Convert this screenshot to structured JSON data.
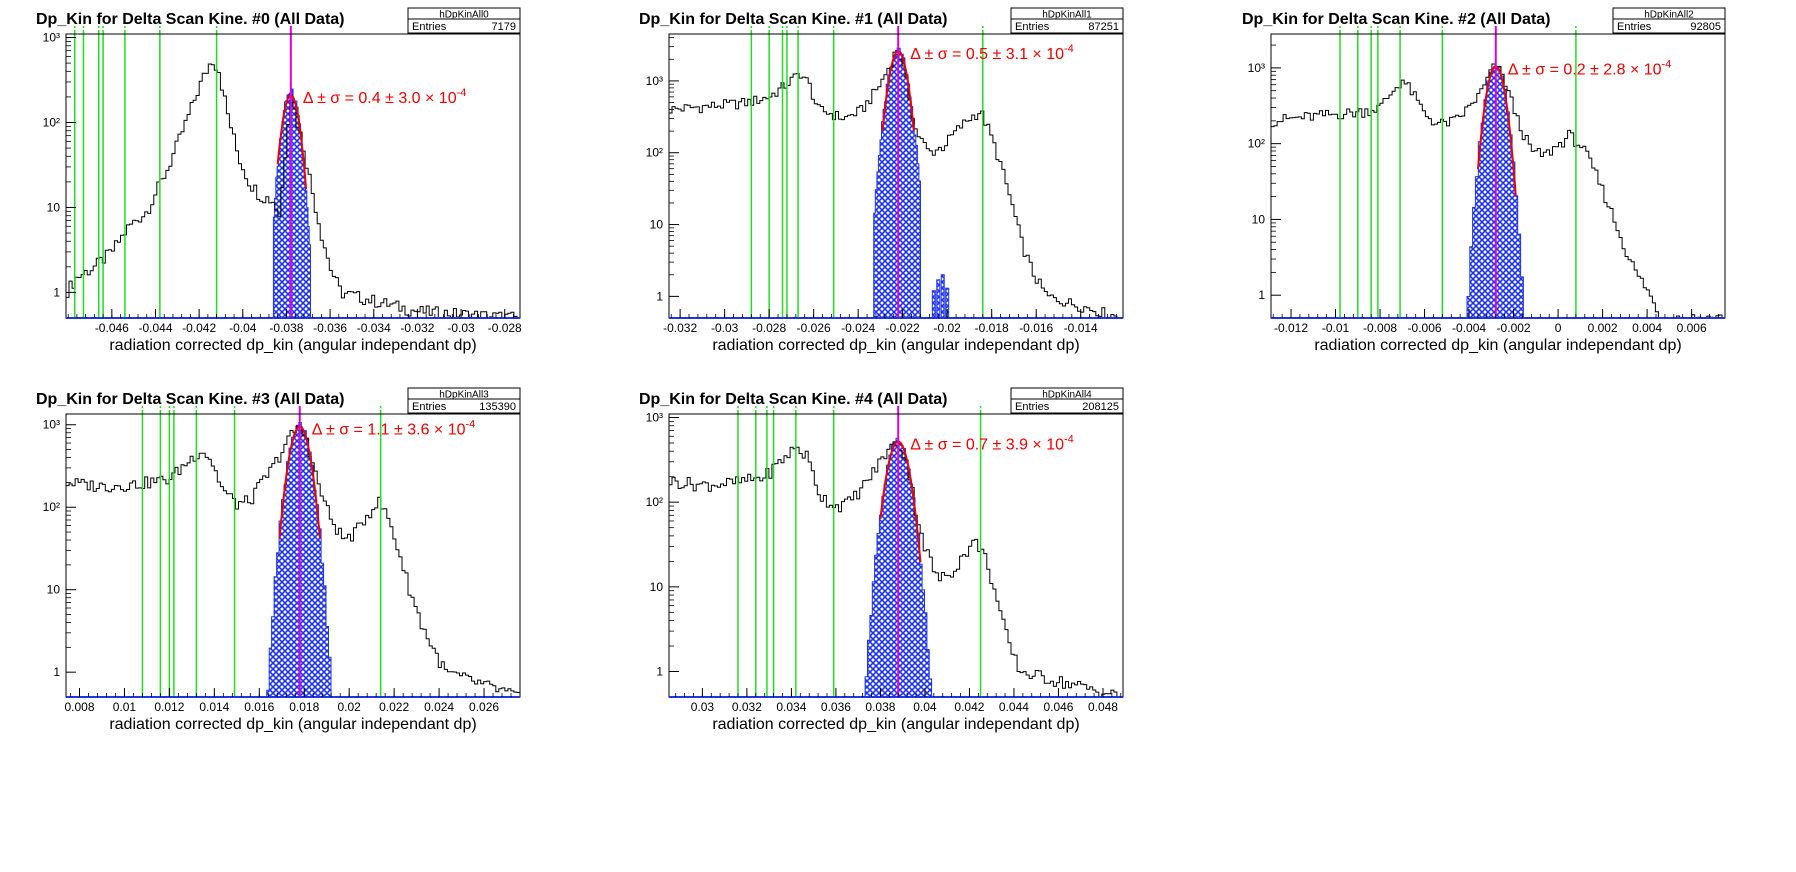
{
  "chart_data": [
    {
      "type": "histogram",
      "title": "Dp_Kin for Delta Scan Kine. #0 (All Data)",
      "stats": {
        "name": "hDpKinAll0",
        "entries_label": "Entries",
        "entries": "7179"
      },
      "xlabel": "radiation corrected dp_kin (angular independant dp)",
      "xlim": [
        -0.0481,
        -0.0273
      ],
      "ylim": [
        0.5,
        1100
      ],
      "yscale": "log",
      "xticks": [
        "-0.046",
        "-0.044",
        "-0.042",
        "-0.04",
        "-0.038",
        "-0.036",
        "-0.034",
        "-0.032",
        "-0.03",
        "-0.028"
      ],
      "yticks": [
        "1",
        "10",
        "10²",
        "10³"
      ],
      "annotation": {
        "prefix": "Δ ± σ = ",
        "value": "0.4 ± 3.0 × 10",
        "exp": "-4"
      },
      "green_lines": [
        -0.0477,
        -0.0473,
        -0.0466,
        -0.0464,
        -0.0454,
        -0.0438,
        -0.0412
      ],
      "peak_line": -0.0378,
      "anchors": [
        [
          -0.0481,
          1
        ],
        [
          -0.0476,
          1.5
        ],
        [
          -0.0468,
          2
        ],
        [
          -0.046,
          3
        ],
        [
          -0.0452,
          6
        ],
        [
          -0.0444,
          9
        ],
        [
          -0.0434,
          30
        ],
        [
          -0.0426,
          100
        ],
        [
          -0.0419,
          300
        ],
        [
          -0.0414,
          560
        ],
        [
          -0.0411,
          420
        ],
        [
          -0.0407,
          130
        ],
        [
          -0.0402,
          40
        ],
        [
          -0.0397,
          20
        ],
        [
          -0.0392,
          14
        ],
        [
          -0.0386,
          12
        ],
        [
          -0.0383,
          8
        ],
        [
          -0.0381,
          30
        ],
        [
          -0.0379,
          120
        ],
        [
          -0.0378,
          210
        ],
        [
          -0.0376,
          130
        ],
        [
          -0.0372,
          50
        ],
        [
          -0.0368,
          15
        ],
        [
          -0.0364,
          5
        ],
        [
          -0.036,
          2
        ],
        [
          -0.0355,
          1
        ],
        [
          -0.034,
          0.8
        ],
        [
          -0.032,
          0.6
        ],
        [
          -0.0273,
          0.5
        ]
      ],
      "shaded": {
        "mean": -0.0378,
        "sigma": 0.0003,
        "amp": 230,
        "lo": -0.0386,
        "hi": -0.0369,
        "secondary": []
      },
      "fit": {
        "mean": -0.0378,
        "sigma": 0.00031,
        "amp": 210,
        "lo": -0.0384,
        "hi": -0.0371
      }
    },
    {
      "type": "histogram",
      "title": "Dp_Kin for Delta Scan Kine. #1 (All Data)",
      "stats": {
        "name": "hDpKinAll1",
        "entries_label": "Entries",
        "entries": "87251"
      },
      "xlabel": "radiation corrected dp_kin (angular independant dp)",
      "xlim": [
        -0.0325,
        -0.0121
      ],
      "ylim": [
        0.5,
        4500
      ],
      "yscale": "log",
      "xticks": [
        "-0.032",
        "-0.03",
        "-0.028",
        "-0.026",
        "-0.024",
        "-0.022",
        "-0.02",
        "-0.018",
        "-0.016",
        "-0.014"
      ],
      "yticks": [
        "1",
        "10",
        "10²",
        "10³"
      ],
      "annotation": {
        "prefix": "Δ ± σ = ",
        "value": "0.5 ± 3.1 × 10",
        "exp": "-4"
      },
      "green_lines": [
        -0.0288,
        -0.028,
        -0.0274,
        -0.0272,
        -0.0267,
        -0.0251,
        -0.0184
      ],
      "peak_line": -0.0222,
      "anchors": [
        [
          -0.0325,
          400
        ],
        [
          -0.0305,
          450
        ],
        [
          -0.029,
          500
        ],
        [
          -0.028,
          600
        ],
        [
          -0.0272,
          900
        ],
        [
          -0.0266,
          1300
        ],
        [
          -0.0262,
          900
        ],
        [
          -0.0258,
          400
        ],
        [
          -0.0252,
          350
        ],
        [
          -0.0246,
          300
        ],
        [
          -0.0238,
          400
        ],
        [
          -0.0234,
          600
        ],
        [
          -0.023,
          900
        ],
        [
          -0.0226,
          1600
        ],
        [
          -0.0223,
          2600
        ],
        [
          -0.0221,
          2200
        ],
        [
          -0.0218,
          900
        ],
        [
          -0.0214,
          200
        ],
        [
          -0.0208,
          100
        ],
        [
          -0.0202,
          120
        ],
        [
          -0.0196,
          200
        ],
        [
          -0.019,
          300
        ],
        [
          -0.0185,
          380
        ],
        [
          -0.0181,
          200
        ],
        [
          -0.0176,
          70
        ],
        [
          -0.0171,
          20
        ],
        [
          -0.0166,
          5
        ],
        [
          -0.0161,
          2
        ],
        [
          -0.0155,
          1
        ],
        [
          -0.0121,
          0.5
        ]
      ],
      "shaded": {
        "mean": -0.0222,
        "sigma": 0.00033,
        "amp": 2600,
        "lo": -0.0233,
        "hi": -0.0212,
        "secondary": [
          [
            -0.0206,
            1.2
          ],
          [
            -0.0204,
            1.7
          ],
          [
            -0.0202,
            2.0
          ],
          [
            -0.02,
            1.3
          ]
        ]
      },
      "fit": {
        "mean": -0.0222,
        "sigma": 0.00031,
        "amp": 2600,
        "lo": -0.0229,
        "hi": -0.0215
      }
    },
    {
      "type": "histogram",
      "title": "Dp_Kin for Delta Scan Kine. #2 (All Data)",
      "stats": {
        "name": "hDpKinAll2",
        "entries_label": "Entries",
        "entries": "92805"
      },
      "xlabel": "radiation corrected dp_kin (angular independant dp)",
      "xlim": [
        -0.0129,
        0.0075
      ],
      "ylim": [
        0.5,
        2800
      ],
      "yscale": "log",
      "xticks": [
        "-0.012",
        "-0.01",
        "-0.008",
        "-0.006",
        "-0.004",
        "-0.002",
        "0",
        "0.002",
        "0.004",
        "0.006"
      ],
      "yticks": [
        "1",
        "10",
        "10²",
        "10³"
      ],
      "annotation": {
        "prefix": "Δ ± σ = ",
        "value": "0.2 ± 2.8 × 10",
        "exp": "-4"
      },
      "green_lines": [
        -0.0098,
        -0.009,
        -0.0084,
        -0.0081,
        -0.0071,
        -0.0052,
        0.0008
      ],
      "peak_line": -0.0028,
      "anchors": [
        [
          -0.0129,
          200
        ],
        [
          -0.011,
          230
        ],
        [
          -0.009,
          260
        ],
        [
          -0.008,
          300
        ],
        [
          -0.0074,
          500
        ],
        [
          -0.007,
          700
        ],
        [
          -0.0066,
          500
        ],
        [
          -0.006,
          250
        ],
        [
          -0.0054,
          180
        ],
        [
          -0.0046,
          200
        ],
        [
          -0.004,
          300
        ],
        [
          -0.0034,
          500
        ],
        [
          -0.0031,
          800
        ],
        [
          -0.0028,
          1100
        ],
        [
          -0.0024,
          700
        ],
        [
          -0.0018,
          200
        ],
        [
          -0.0012,
          80
        ],
        [
          -0.0006,
          70
        ],
        [
          0.0001,
          100
        ],
        [
          0.0005,
          130
        ],
        [
          0.0011,
          90
        ],
        [
          0.0017,
          40
        ],
        [
          0.0023,
          15
        ],
        [
          0.0029,
          5
        ],
        [
          0.0035,
          2
        ],
        [
          0.004,
          1.2
        ],
        [
          0.0046,
          0.5
        ],
        [
          0.0075,
          0.5
        ]
      ],
      "shaded": {
        "mean": -0.0028,
        "sigma": 0.00033,
        "amp": 1050,
        "lo": -0.0046,
        "hi": -0.0008,
        "secondary": []
      },
      "fit": {
        "mean": -0.0028,
        "sigma": 0.00032,
        "amp": 1050,
        "lo": -0.0036,
        "hi": -0.0019
      }
    },
    {
      "type": "histogram",
      "title": "Dp_Kin for Delta Scan Kine. #3 (All Data)",
      "stats": {
        "name": "hDpKinAll3",
        "entries_label": "Entries",
        "entries": "135390"
      },
      "xlabel": "radiation corrected dp_kin (angular independant dp)",
      "xlim": [
        0.0074,
        0.0276
      ],
      "ylim": [
        0.5,
        1350
      ],
      "yscale": "log",
      "xticks": [
        "0.008",
        "0.01",
        "0.012",
        "0.014",
        "0.016",
        "0.018",
        "0.02",
        "0.022",
        "0.024",
        "0.026"
      ],
      "yticks": [
        "1",
        "10",
        "10²",
        "10³"
      ],
      "annotation": {
        "prefix": "Δ ± σ = ",
        "value": "1.1 ± 3.6 × 10",
        "exp": "-4"
      },
      "green_lines": [
        0.0108,
        0.0116,
        0.012,
        0.0122,
        0.0132,
        0.0149,
        0.0214
      ],
      "peak_line": 0.0178,
      "anchors": [
        [
          0.0074,
          200
        ],
        [
          0.009,
          180
        ],
        [
          0.0105,
          190
        ],
        [
          0.012,
          220
        ],
        [
          0.0128,
          350
        ],
        [
          0.0134,
          500
        ],
        [
          0.0138,
          400
        ],
        [
          0.0144,
          160
        ],
        [
          0.015,
          110
        ],
        [
          0.0156,
          120
        ],
        [
          0.016,
          180
        ],
        [
          0.0166,
          300
        ],
        [
          0.0172,
          600
        ],
        [
          0.0177,
          950
        ],
        [
          0.0181,
          700
        ],
        [
          0.0186,
          200
        ],
        [
          0.0192,
          70
        ],
        [
          0.0198,
          40
        ],
        [
          0.0203,
          50
        ],
        [
          0.0208,
          80
        ],
        [
          0.0213,
          120
        ],
        [
          0.0217,
          80
        ],
        [
          0.0222,
          30
        ],
        [
          0.0227,
          10
        ],
        [
          0.0232,
          4
        ],
        [
          0.0237,
          2
        ],
        [
          0.0243,
          1
        ],
        [
          0.0276,
          0.5
        ]
      ],
      "shaded": {
        "mean": 0.0178,
        "sigma": 0.00037,
        "amp": 950,
        "lo": 0.016,
        "hi": 0.0193,
        "secondary": []
      },
      "fit": {
        "mean": 0.0178,
        "sigma": 0.00036,
        "amp": 950,
        "lo": 0.0169,
        "hi": 0.0187
      }
    },
    {
      "type": "histogram",
      "title": "Dp_Kin for Delta Scan Kine. #4 (All Data)",
      "stats": {
        "name": "hDpKinAll4",
        "entries_label": "Entries",
        "entries": "208125"
      },
      "xlabel": "radiation corrected dp_kin (angular independant dp)",
      "xlim": [
        0.0285,
        0.0489
      ],
      "ylim": [
        0.5,
        1100
      ],
      "yscale": "log",
      "xticks": [
        "0.03",
        "0.032",
        "0.034",
        "0.036",
        "0.038",
        "0.04",
        "0.042",
        "0.044",
        "0.046",
        "0.048"
      ],
      "yticks": [
        "1",
        "10",
        "10²",
        "10³"
      ],
      "annotation": {
        "prefix": "Δ ± σ = ",
        "value": "0.7 ± 3.9 × 10",
        "exp": "-4"
      },
      "green_lines": [
        0.0316,
        0.0324,
        0.0329,
        0.0332,
        0.0342,
        0.0359,
        0.0425
      ],
      "peak_line": 0.0388,
      "anchors": [
        [
          0.0285,
          180
        ],
        [
          0.03,
          160
        ],
        [
          0.0315,
          170
        ],
        [
          0.0328,
          200
        ],
        [
          0.0335,
          300
        ],
        [
          0.0342,
          450
        ],
        [
          0.0347,
          350
        ],
        [
          0.0353,
          120
        ],
        [
          0.036,
          90
        ],
        [
          0.0366,
          100
        ],
        [
          0.0372,
          150
        ],
        [
          0.0378,
          250
        ],
        [
          0.0383,
          400
        ],
        [
          0.0388,
          520
        ],
        [
          0.0392,
          300
        ],
        [
          0.0396,
          80
        ],
        [
          0.04,
          30
        ],
        [
          0.0406,
          12
        ],
        [
          0.0412,
          15
        ],
        [
          0.0418,
          25
        ],
        [
          0.0423,
          35
        ],
        [
          0.0428,
          20
        ],
        [
          0.0433,
          6
        ],
        [
          0.0438,
          2
        ],
        [
          0.0443,
          1
        ],
        [
          0.0489,
          0.5
        ]
      ],
      "shaded": {
        "mean": 0.0388,
        "sigma": 0.0004,
        "amp": 520,
        "lo": 0.0371,
        "hi": 0.0403,
        "secondary": []
      },
      "fit": {
        "mean": 0.0388,
        "sigma": 0.00039,
        "amp": 520,
        "lo": 0.038,
        "hi": 0.0398
      }
    }
  ],
  "colors": {
    "axis": "#000000",
    "green": "#22dd22",
    "peak": "#dd00dd",
    "fit": "#ee0000",
    "fill": "#1f35e6",
    "annotation": "#ee0000"
  }
}
